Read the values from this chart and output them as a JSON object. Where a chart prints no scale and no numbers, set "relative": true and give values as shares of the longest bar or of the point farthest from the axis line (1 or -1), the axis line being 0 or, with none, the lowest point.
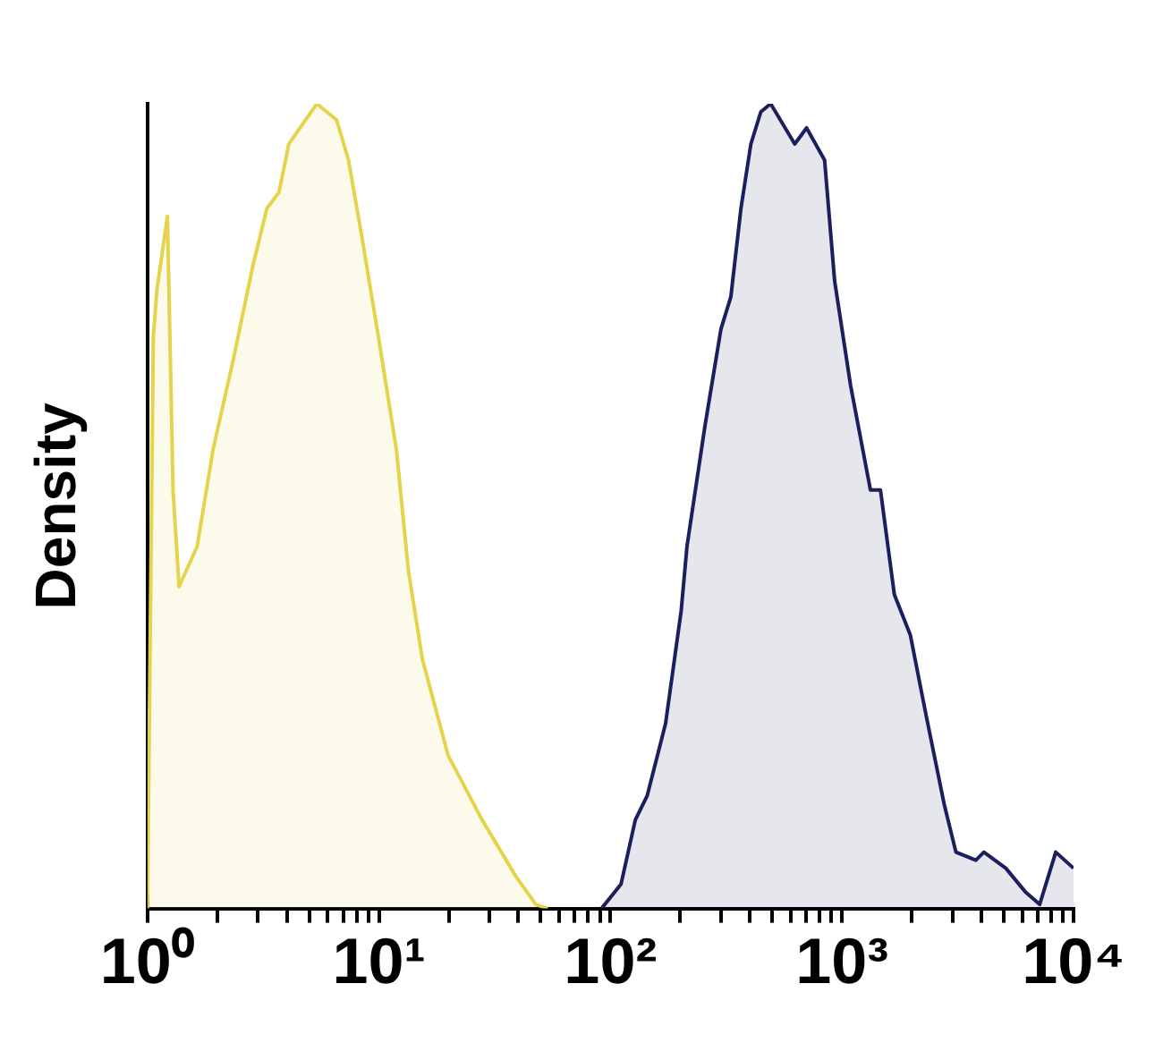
{
  "chart_data": {
    "type": "area",
    "ylabel": "Density",
    "relative": true,
    "log": "x",
    "grid": false,
    "legend": false,
    "marker": "none",
    "line_style": "solid",
    "xlim": [
      1,
      10000
    ],
    "xticks": [
      {
        "value": 1,
        "label": "10⁰"
      },
      {
        "value": 2,
        "label": null
      },
      {
        "value": 3,
        "label": null
      },
      {
        "value": 4,
        "label": null
      },
      {
        "value": 5,
        "label": null
      },
      {
        "value": 6,
        "label": null
      },
      {
        "value": 7,
        "label": null
      },
      {
        "value": 8,
        "label": null
      },
      {
        "value": 9,
        "label": null
      },
      {
        "value": 10,
        "label": "10¹"
      },
      {
        "value": 20,
        "label": null
      },
      {
        "value": 30,
        "label": null
      },
      {
        "value": 40,
        "label": null
      },
      {
        "value": 50,
        "label": null
      },
      {
        "value": 60,
        "label": null
      },
      {
        "value": 70,
        "label": null
      },
      {
        "value": 80,
        "label": null
      },
      {
        "value": 90,
        "label": null
      },
      {
        "value": 100,
        "label": "10²"
      },
      {
        "value": 200,
        "label": null
      },
      {
        "value": 300,
        "label": null
      },
      {
        "value": 400,
        "label": null
      },
      {
        "value": 500,
        "label": null
      },
      {
        "value": 600,
        "label": null
      },
      {
        "value": 700,
        "label": null
      },
      {
        "value": 800,
        "label": null
      },
      {
        "value": 900,
        "label": null
      },
      {
        "value": 1000,
        "label": "10³"
      },
      {
        "value": 2000,
        "label": null
      },
      {
        "value": 3000,
        "label": null
      },
      {
        "value": 4000,
        "label": null
      },
      {
        "value": 5000,
        "label": null
      },
      {
        "value": 6000,
        "label": null
      },
      {
        "value": 7000,
        "label": null
      },
      {
        "value": 8000,
        "label": null
      },
      {
        "value": 9000,
        "label": null
      },
      {
        "value": 10000,
        "label": "10⁴"
      }
    ],
    "series": [
      {
        "color": "#e6d34c",
        "x": [
          1,
          1.06,
          1.1,
          1.22,
          1.29,
          1.37,
          1.64,
          1.92,
          2.34,
          2.86,
          3.28,
          3.7,
          4.08,
          5.39,
          6.56,
          7.39,
          8.49,
          9.95,
          11.9,
          13.4,
          15.4,
          19.9,
          27.9,
          39,
          47.6,
          53.6
        ],
        "values": [
          0,
          0.71,
          0.77,
          0.86,
          0.52,
          0.4,
          0.45,
          0.57,
          0.68,
          0.8,
          0.87,
          0.89,
          0.95,
          1,
          0.98,
          0.93,
          0.83,
          0.71,
          0.57,
          0.42,
          0.31,
          0.19,
          0.11,
          0.04,
          0.005,
          0
        ]
      },
      {
        "color": "#1c1f5e",
        "x": [
          91.5,
          111,
          128,
          144,
          173,
          202,
          214,
          256,
          300,
          331,
          366,
          404,
          446,
          492,
          625,
          703,
          841,
          929,
          1089,
          1327,
          1466,
          1683,
          1972,
          2308,
          2760,
          3105,
          3785,
          4100,
          5100,
          6220,
          7140,
          8380,
          10000
        ],
        "values": [
          0,
          0.03,
          0.11,
          0.14,
          0.23,
          0.37,
          0.45,
          0.6,
          0.72,
          0.76,
          0.87,
          0.95,
          0.99,
          1,
          0.95,
          0.97,
          0.93,
          0.78,
          0.65,
          0.52,
          0.52,
          0.39,
          0.34,
          0.24,
          0.13,
          0.07,
          0.06,
          0.07,
          0.05,
          0.02,
          0.005,
          0.07,
          0.05
        ]
      }
    ]
  }
}
